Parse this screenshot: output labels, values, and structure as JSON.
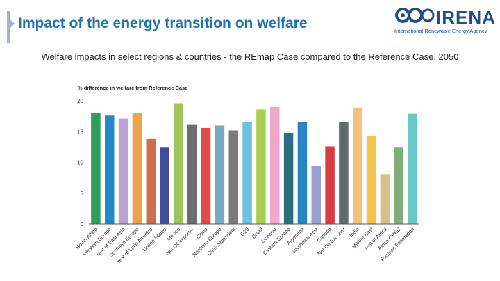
{
  "slide": {
    "title": "Impact of the energy transition on welfare",
    "subtitle": "Welfare impacts in select regions & countries - the REmap Case compared to the Reference Case, 2050"
  },
  "logo": {
    "name": "IRENA",
    "tagline": "International Renewable Energy Agency",
    "color": "#1f4e8c"
  },
  "chart_data": {
    "type": "bar",
    "ylabel": "% difference in welfare from Reference Case",
    "ylim": [
      0,
      20
    ],
    "yticks": [
      0,
      5,
      10,
      15,
      20
    ],
    "grid": false,
    "categories": [
      "South Africa",
      "Western Europe",
      "rest of East Asia",
      "Southern Europe",
      "rest of Latin America",
      "United States",
      "Mexico",
      "Net Oil Importer",
      "China",
      "Northern Europe",
      "Coal-dependent",
      "G20",
      "Brazil",
      "Oceania",
      "Eastern Europe",
      "Argentina",
      "Southeast Asia",
      "Canada",
      "Net Oil Exporter",
      "India",
      "Middle East",
      "rest of Africa",
      "Africa OPEC",
      "Russian Federation"
    ],
    "values": [
      18.0,
      17.6,
      17.1,
      18.0,
      13.8,
      12.4,
      19.6,
      16.2,
      15.6,
      16.0,
      15.2,
      16.5,
      18.6,
      19.0,
      14.8,
      16.6,
      9.4,
      12.6,
      16.5,
      18.9,
      14.3,
      8.1,
      12.4,
      17.9
    ],
    "colors": [
      "#2e9e5b",
      "#2389c6",
      "#b9a2d4",
      "#eda34e",
      "#cb6f4e",
      "#3e4c9e",
      "#9ec35a",
      "#6b6f70",
      "#d94d4d",
      "#73a9c9",
      "#7a7a7a",
      "#6fc2e4",
      "#a9cf4f",
      "#f0a7c8",
      "#2b6f80",
      "#2786c2",
      "#9a9ed2",
      "#d93b3f",
      "#5f6b6b",
      "#f7c37c",
      "#f2c24b",
      "#d9bf84",
      "#82ad7a",
      "#6ac9c4"
    ]
  }
}
